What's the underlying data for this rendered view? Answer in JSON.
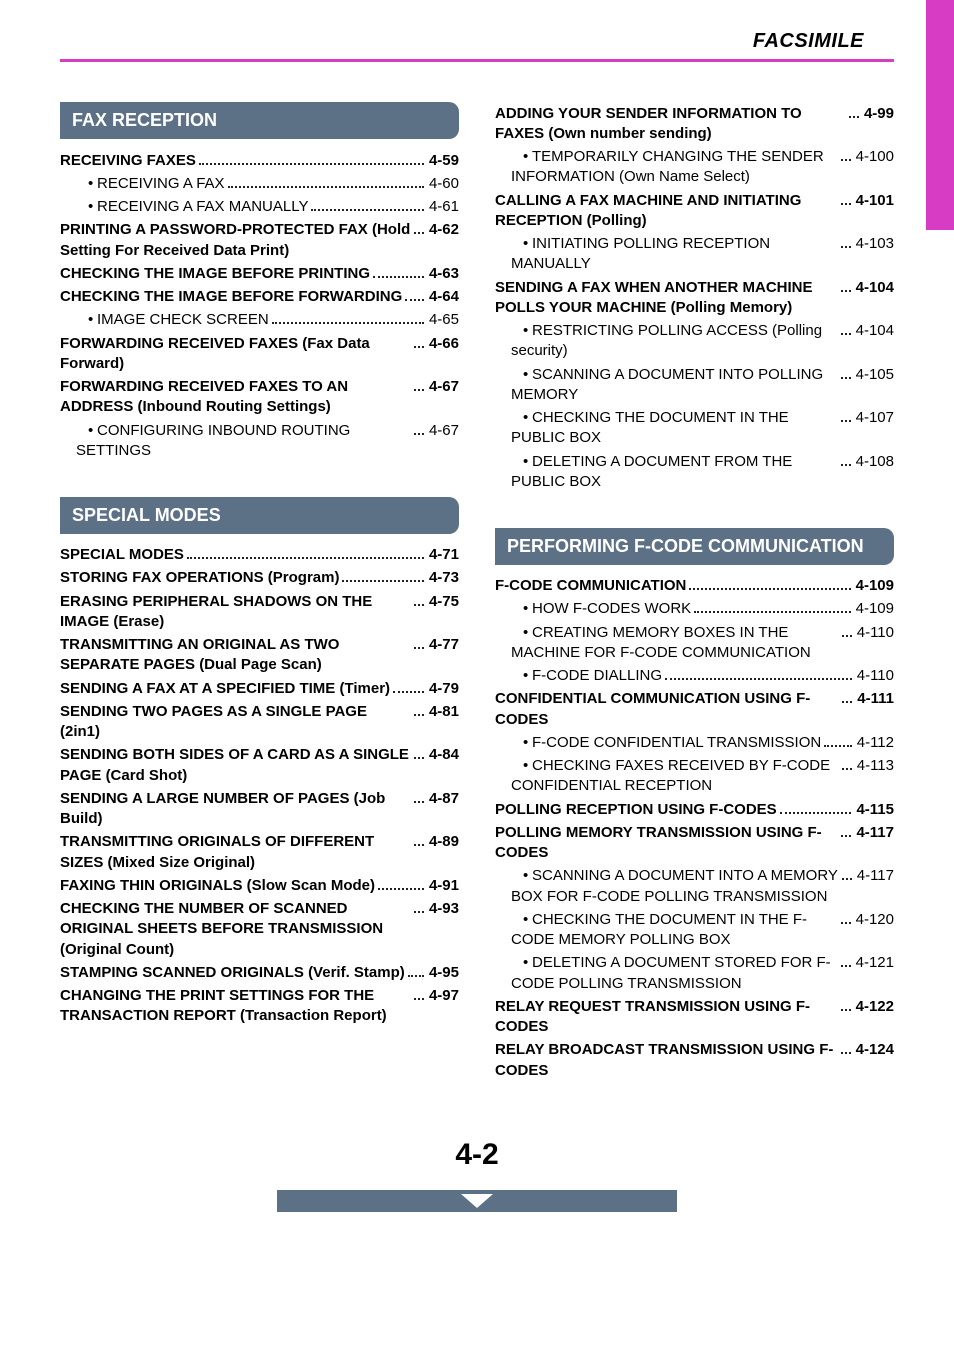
{
  "header": {
    "title": "FACSIMILE"
  },
  "page_number": "4-2",
  "colors": {
    "accent": "#d63cc4",
    "section_bg": "#5c7086",
    "section_fg": "#ffffff",
    "text": "#000000"
  },
  "left": {
    "sections": [
      {
        "title": "FAX RECEPTION",
        "items": [
          {
            "label": "RECEIVING FAXES",
            "page": "4-59",
            "bold": true
          },
          {
            "label": "RECEIVING A FAX",
            "page": "4-60",
            "bullet": true
          },
          {
            "label": "RECEIVING A FAX MANUALLY",
            "page": "4-61",
            "bullet": true
          },
          {
            "label": "PRINTING A PASSWORD-PROTECTED FAX (Hold Setting For Received Data Print)",
            "page": "4-62",
            "bold": true
          },
          {
            "label": "CHECKING THE IMAGE BEFORE PRINTING",
            "page": "4-63",
            "bold": true
          },
          {
            "label": "CHECKING THE IMAGE BEFORE FORWARDING",
            "page": "4-64",
            "bold": true
          },
          {
            "label": "IMAGE CHECK SCREEN",
            "page": "4-65",
            "bullet": true
          },
          {
            "label": "FORWARDING RECEIVED FAXES (Fax Data Forward)",
            "page": "4-66",
            "bold": true
          },
          {
            "label": "FORWARDING RECEIVED FAXES TO AN ADDRESS (Inbound Routing Settings)",
            "page": "4-67",
            "bold": true
          },
          {
            "label": "CONFIGURING INBOUND ROUTING SETTINGS",
            "page": "4-67",
            "bullet": true
          }
        ]
      },
      {
        "title": "SPECIAL MODES",
        "items": [
          {
            "label": "SPECIAL MODES",
            "page": "4-71",
            "bold": true
          },
          {
            "label": "STORING FAX OPERATIONS (Program)",
            "page": "4-73",
            "bold": true
          },
          {
            "label": "ERASING PERIPHERAL SHADOWS ON THE IMAGE (Erase)",
            "page": "4-75",
            "bold": true
          },
          {
            "label": "TRANSMITTING AN ORIGINAL AS TWO SEPARATE PAGES (Dual Page Scan)",
            "page": "4-77",
            "bold": true
          },
          {
            "label": "SENDING A FAX AT A SPECIFIED TIME (Timer)",
            "page": "4-79",
            "bold": true
          },
          {
            "label": "SENDING TWO PAGES AS A SINGLE PAGE (2in1)",
            "page": "4-81",
            "bold": true
          },
          {
            "label": "SENDING BOTH SIDES OF A CARD AS A SINGLE PAGE (Card Shot)",
            "page": "4-84",
            "bold": true
          },
          {
            "label": "SENDING A LARGE NUMBER OF PAGES (Job Build)",
            "page": "4-87",
            "bold": true
          },
          {
            "label": "TRANSMITTING ORIGINALS OF DIFFERENT SIZES (Mixed Size Original)",
            "page": "4-89",
            "bold": true
          },
          {
            "label": "FAXING THIN ORIGINALS (Slow Scan Mode)",
            "page": "4-91",
            "bold": true
          },
          {
            "label": "CHECKING THE NUMBER OF SCANNED ORIGINAL SHEETS BEFORE TRANSMISSION (Original Count)",
            "page": "4-93",
            "bold": true
          },
          {
            "label": "STAMPING SCANNED ORIGINALS (Verif. Stamp)",
            "page": "4-95",
            "bold": true
          },
          {
            "label": "CHANGING THE PRINT SETTINGS FOR THE TRANSACTION REPORT (Transaction Report)",
            "page": "4-97",
            "bold": true
          }
        ]
      }
    ]
  },
  "right": {
    "sections": [
      {
        "title": null,
        "items": [
          {
            "label": "ADDING YOUR SENDER INFORMATION TO FAXES (Own number sending)",
            "page": "4-99",
            "bold": true
          },
          {
            "label": "TEMPORARILY CHANGING THE SENDER INFORMATION (Own Name Select)",
            "page": "4-100",
            "bullet": true
          },
          {
            "label": "CALLING A FAX MACHINE AND INITIATING RECEPTION (Polling)",
            "page": "4-101",
            "bold": true
          },
          {
            "label": "INITIATING POLLING RECEPTION MANUALLY",
            "page": "4-103",
            "bullet": true
          },
          {
            "label": "SENDING A FAX WHEN ANOTHER MACHINE POLLS YOUR MACHINE (Polling Memory)",
            "page": "4-104",
            "bold": true
          },
          {
            "label": "RESTRICTING POLLING ACCESS (Polling security)",
            "page": "4-104",
            "bullet": true
          },
          {
            "label": "SCANNING A DOCUMENT INTO POLLING MEMORY",
            "page": "4-105",
            "bullet": true
          },
          {
            "label": "CHECKING THE DOCUMENT IN THE PUBLIC BOX",
            "page": "4-107",
            "bullet": true
          },
          {
            "label": "DELETING A DOCUMENT FROM THE PUBLIC BOX",
            "page": "4-108",
            "bullet": true
          }
        ]
      },
      {
        "title": "PERFORMING F-CODE COMMUNICATION",
        "items": [
          {
            "label": "F-CODE COMMUNICATION",
            "page": "4-109",
            "bold": true
          },
          {
            "label": "HOW F-CODES WORK",
            "page": "4-109",
            "bullet": true
          },
          {
            "label": "CREATING MEMORY BOXES IN THE MACHINE FOR F-CODE COMMUNICATION",
            "page": "4-110",
            "bullet": true
          },
          {
            "label": "F-CODE DIALLING",
            "page": "4-110",
            "bullet": true
          },
          {
            "label": "CONFIDENTIAL COMMUNICATION USING F-CODES",
            "page": "4-111",
            "bold": true
          },
          {
            "label": "F-CODE CONFIDENTIAL TRANSMISSION",
            "page": "4-112",
            "bullet": true
          },
          {
            "label": "CHECKING FAXES RECEIVED BY F-CODE CONFIDENTIAL RECEPTION",
            "page": "4-113",
            "bullet": true
          },
          {
            "label": "POLLING RECEPTION USING F-CODES",
            "page": "4-115",
            "bold": true
          },
          {
            "label": "POLLING MEMORY TRANSMISSION USING F-CODES",
            "page": "4-117",
            "bold": true
          },
          {
            "label": "SCANNING A DOCUMENT INTO A MEMORY BOX FOR F-CODE POLLING TRANSMISSION",
            "page": "4-117",
            "bullet": true
          },
          {
            "label": "CHECKING THE DOCUMENT IN THE F-CODE MEMORY POLLING BOX",
            "page": "4-120",
            "bullet": true
          },
          {
            "label": "DELETING A DOCUMENT STORED FOR F-CODE POLLING TRANSMISSION",
            "page": "4-121",
            "bullet": true
          },
          {
            "label": "RELAY REQUEST TRANSMISSION USING F-CODES",
            "page": "4-122",
            "bold": true
          },
          {
            "label": "RELAY BROADCAST TRANSMISSION USING F-CODES",
            "page": "4-124",
            "bold": true
          }
        ]
      }
    ]
  }
}
